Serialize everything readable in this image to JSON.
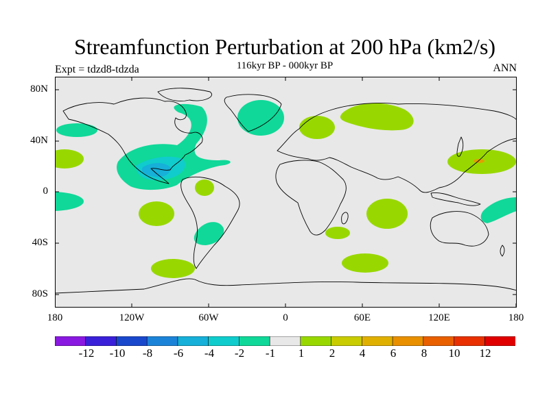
{
  "title": "Streamfunction Perturbation at 200 hPa (km2/s)",
  "subtitle": "116kyr BP - 000kyr BP",
  "experiment_label": "Expt = tdzd8-tdzda",
  "season_label": "ANN",
  "map": {
    "projection": "cylindrical equidistant",
    "lon_range": [
      -180,
      180
    ],
    "lat_range": [
      -90,
      90
    ],
    "lat_tick_labels": [
      "80N",
      "40N",
      "0",
      "40S",
      "80S"
    ],
    "lon_tick_labels": [
      "180",
      "120W",
      "60W",
      "0",
      "60E",
      "120E",
      "180"
    ]
  },
  "colorbar": {
    "labels": [
      "-12",
      "-10",
      "-8",
      "-6",
      "-4",
      "-2",
      "-1",
      "1",
      "2",
      "4",
      "6",
      "8",
      "10",
      "12"
    ],
    "colors": [
      "#8a18e0",
      "#3a20d8",
      "#1a48cc",
      "#1c84d8",
      "#16b0d8",
      "#10cccc",
      "#10d898",
      "#e8e8e8",
      "#98d800",
      "#c8cc00",
      "#e0b000",
      "#e89000",
      "#e86000",
      "#e83000",
      "#e00000"
    ]
  },
  "colors": {
    "land_ocean_fill": "#e8e8e8",
    "coastline": "#000000",
    "negative_light": "#10d898",
    "negative_mid": "#10cccc",
    "negative_dark": "#16b0d8",
    "positive_light": "#98d800",
    "positive_mid": "#c8cc00",
    "positive_orange": "#e0a000"
  }
}
